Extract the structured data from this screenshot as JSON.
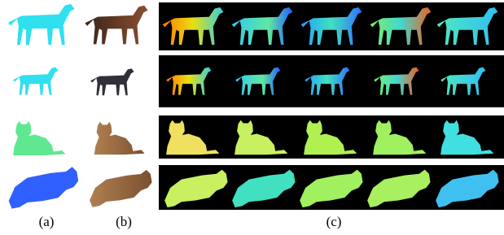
{
  "panel_labels": [
    "(a)",
    "(b)",
    "(c)"
  ]
}
